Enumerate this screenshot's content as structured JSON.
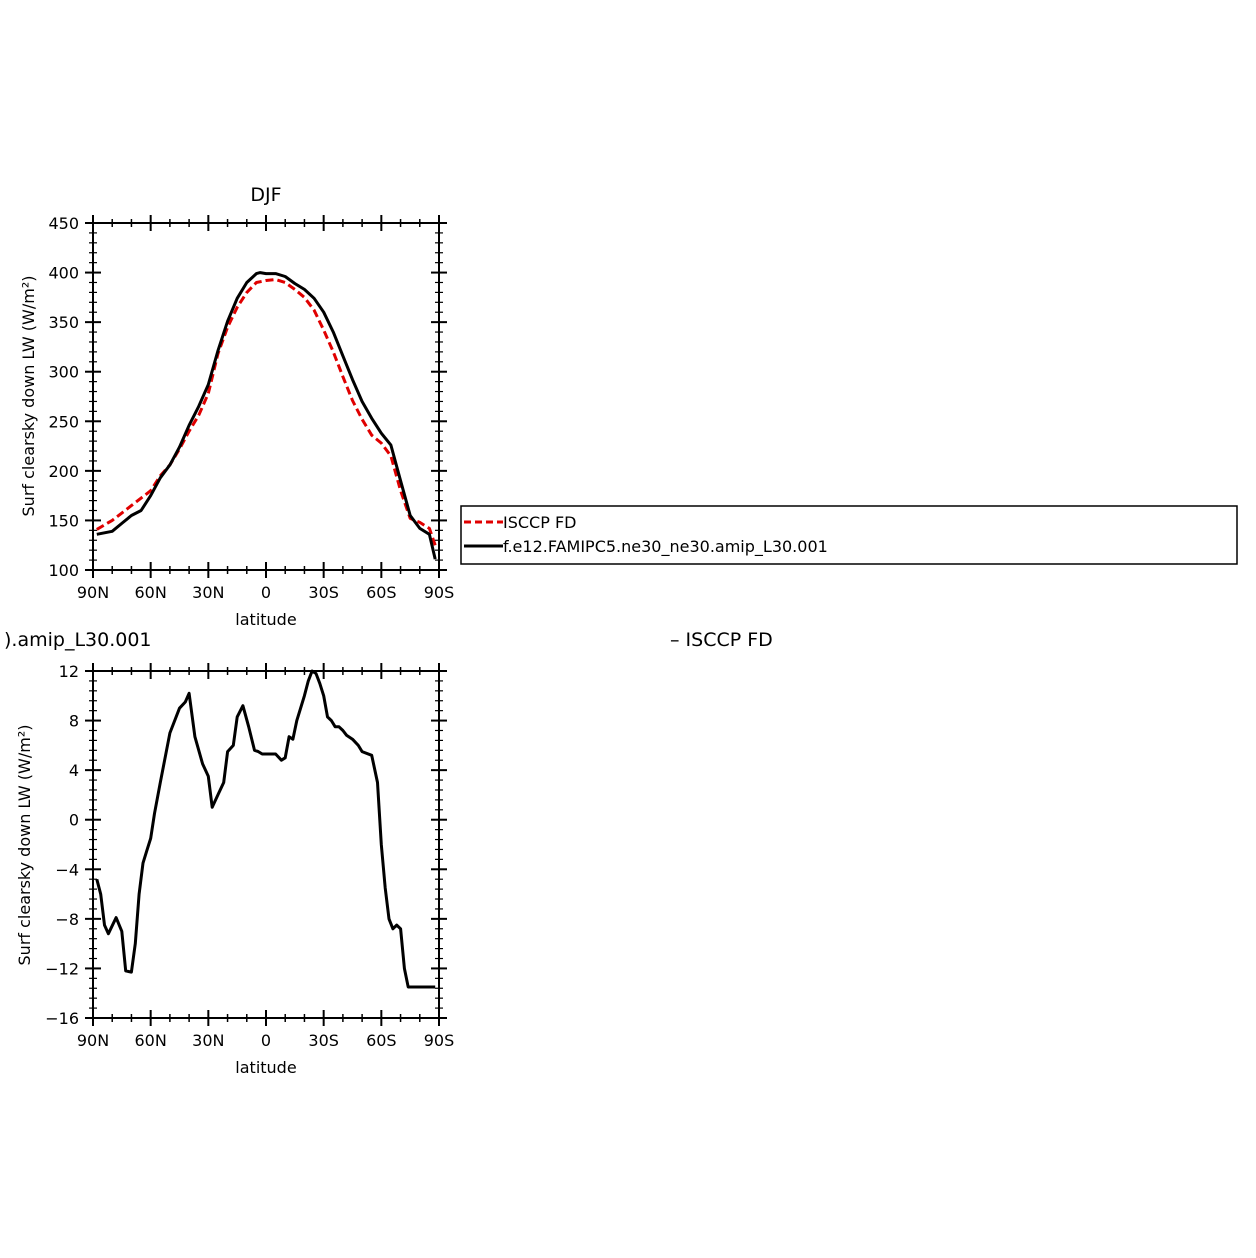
{
  "colors": {
    "isccp": "#e00000",
    "model": "#000000",
    "axis": "#000000"
  },
  "chart_data": [
    {
      "type": "line",
      "title": "DJF",
      "xlabel": "latitude",
      "ylabel": "Surf clearsky down LW (W/m²)",
      "xlim": [
        -90,
        90
      ],
      "ylim": [
        100,
        450
      ],
      "x_ticks": [
        {
          "v": -90,
          "label": "90N"
        },
        {
          "v": -60,
          "label": "60N"
        },
        {
          "v": -30,
          "label": "30N"
        },
        {
          "v": 0,
          "label": "0"
        },
        {
          "v": 30,
          "label": "30S"
        },
        {
          "v": 60,
          "label": "60S"
        },
        {
          "v": 90,
          "label": "90S"
        }
      ],
      "y_ticks": [
        100,
        150,
        200,
        250,
        300,
        350,
        400,
        450
      ],
      "legend": {
        "placement": "right",
        "entries": [
          "ISCCP FD",
          "f.e12.FAMIPC5.ne30_ne30.amip_L30.001"
        ]
      },
      "series": [
        {
          "name": "ISCCP FD",
          "style": "dashed",
          "color": "#e00000",
          "x": [
            -88,
            -80,
            -70,
            -60,
            -55,
            -50,
            -45,
            -40,
            -35,
            -30,
            -25,
            -20,
            -15,
            -10,
            -5,
            0,
            5,
            10,
            15,
            20,
            25,
            30,
            35,
            40,
            45,
            50,
            55,
            60,
            65,
            70,
            75,
            80,
            85,
            88
          ],
          "y": [
            141,
            150,
            165,
            180,
            195,
            206,
            222,
            240,
            256,
            278,
            318,
            345,
            365,
            380,
            390,
            392,
            393,
            390,
            383,
            375,
            362,
            342,
            320,
            295,
            271,
            252,
            236,
            228,
            215,
            180,
            152,
            148,
            142,
            125
          ]
        },
        {
          "name": "f.e12.FAMIPC5.ne30_ne30.amip_L30.001",
          "style": "solid",
          "color": "#000000",
          "x": [
            -88,
            -80,
            -75,
            -70,
            -65,
            -60,
            -55,
            -50,
            -45,
            -40,
            -35,
            -30,
            -25,
            -20,
            -15,
            -10,
            -5,
            -3,
            0,
            5,
            10,
            15,
            20,
            25,
            30,
            35,
            40,
            45,
            50,
            55,
            60,
            65,
            70,
            75,
            80,
            85,
            88
          ],
          "y": [
            136,
            139,
            147,
            155,
            160,
            175,
            193,
            206,
            224,
            246,
            265,
            287,
            321,
            351,
            374,
            390,
            399,
            400,
            399,
            399,
            396,
            389,
            383,
            374,
            360,
            340,
            316,
            292,
            270,
            253,
            238,
            226,
            190,
            155,
            142,
            136,
            111
          ]
        }
      ]
    },
    {
      "type": "line",
      "title": ").amip_L30.001",
      "title_right": "– ISCCP FD",
      "xlabel": "latitude",
      "ylabel": "Surf clearsky down LW (W/m²)",
      "xlim": [
        -90,
        90
      ],
      "ylim": [
        -16,
        12
      ],
      "x_ticks": [
        {
          "v": -90,
          "label": "90N"
        },
        {
          "v": -60,
          "label": "60N"
        },
        {
          "v": -30,
          "label": "30N"
        },
        {
          "v": 0,
          "label": "0"
        },
        {
          "v": 30,
          "label": "30S"
        },
        {
          "v": 60,
          "label": "60S"
        },
        {
          "v": 90,
          "label": "90S"
        }
      ],
      "y_ticks": [
        -16,
        -12,
        -8,
        -4,
        0,
        4,
        8,
        12
      ],
      "series": [
        {
          "name": "",
          "style": "solid",
          "color": "#000000",
          "x": [
            -88,
            -86,
            -84,
            -82,
            -78,
            -75,
            -73,
            -70,
            -68,
            -66,
            -64,
            -62,
            -60,
            -58,
            -55,
            -50,
            -45,
            -42,
            -40,
            -37,
            -33,
            -30,
            -28,
            -25,
            -22,
            -20,
            -17,
            -15,
            -12,
            -9,
            -6,
            -4,
            -2,
            0,
            5,
            8,
            10,
            12,
            14,
            16,
            18,
            20,
            22,
            24,
            26,
            28,
            30,
            32,
            34,
            36,
            38,
            40,
            42,
            45,
            48,
            50,
            55,
            58,
            60,
            62,
            64,
            66,
            68,
            70,
            72,
            74,
            76,
            78,
            80,
            82,
            84,
            86,
            88
          ],
          "y": [
            -4.8,
            -6,
            -8.5,
            -9.2,
            -7.9,
            -9,
            -12.2,
            -12.3,
            -10,
            -6,
            -3.5,
            -2.5,
            -1.5,
            0.5,
            3,
            7,
            9,
            9.5,
            10.2,
            6.7,
            4.5,
            3.5,
            1,
            2,
            3,
            5.5,
            6,
            8.3,
            9.2,
            7.5,
            5.6,
            5.5,
            5.3,
            5.3,
            5.3,
            4.8,
            5,
            6.7,
            6.5,
            8,
            9,
            10,
            11.2,
            12,
            11.8,
            11,
            10,
            8.3,
            8,
            7.5,
            7.5,
            7.2,
            6.8,
            6.5,
            6,
            5.5,
            5.2,
            3,
            -2,
            -5.5,
            -8,
            -8.8,
            -8.5,
            -8.8,
            -12,
            -13.5,
            -13.5,
            -13.5,
            -13.5,
            -13.5,
            -13.5,
            -13.5,
            -13.5
          ]
        }
      ]
    }
  ]
}
